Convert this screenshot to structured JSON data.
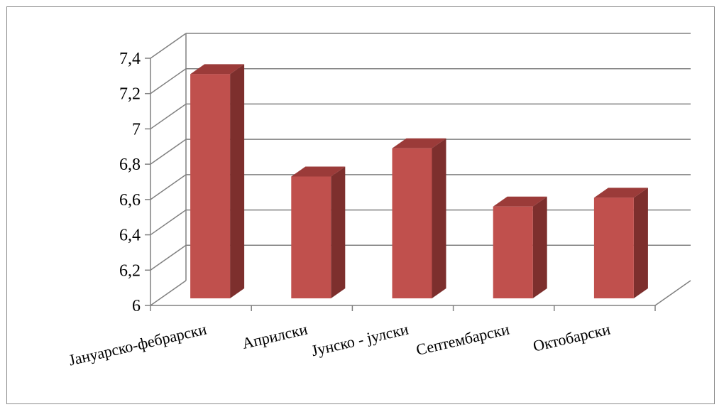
{
  "chart_data": {
    "type": "bar",
    "style": "3d-column",
    "categories": [
      "Јануарско-фебрарски",
      "Априлски",
      "Јунско - јулски",
      "Септембарски",
      "Октобарски"
    ],
    "values": [
      7.27,
      6.69,
      6.85,
      6.52,
      6.57
    ],
    "ylim": [
      6,
      7.4
    ],
    "y_ticks": [
      "6",
      "6,2",
      "6,4",
      "6,6",
      "6,8",
      "7",
      "7,2",
      "7,4"
    ],
    "grid": true,
    "legend": "none",
    "colors": {
      "bar_front": "#c0504d",
      "bar_side": "#7d2f2d",
      "bar_top": "#9b3b39",
      "grid": "#808080",
      "axis": "#808080"
    }
  }
}
